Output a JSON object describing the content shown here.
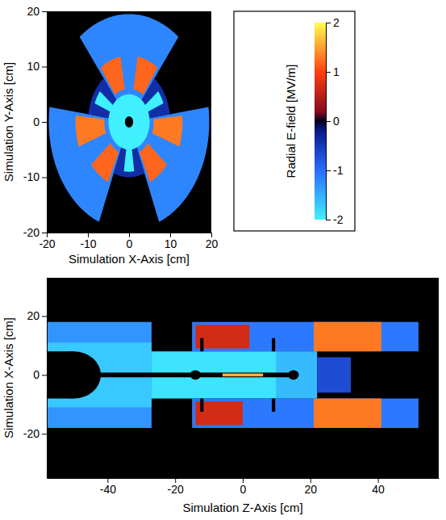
{
  "chart_data": [
    {
      "type": "heatmap",
      "xlabel": "Simulation X-Axis [cm]",
      "ylabel": "Simulation Y-Axis [cm]",
      "xlim": [
        -20,
        20
      ],
      "ylim": [
        -20,
        20
      ],
      "xticks": [
        -20,
        -10,
        0,
        10,
        20
      ],
      "yticks": [
        -20,
        -10,
        0,
        10,
        20
      ],
      "colorbar": {
        "label": "Radial E-field [MV/m]",
        "range": [
          -2,
          2
        ],
        "ticks": [
          -2,
          -1,
          0,
          1,
          2
        ]
      },
      "regions": [
        {
          "shape": "sector",
          "radius": [
            4,
            19.5
          ],
          "angle": [
            52,
            128
          ],
          "value": -1.2
        },
        {
          "shape": "sector",
          "radius": [
            4,
            19.5
          ],
          "angle": [
            172,
            248
          ],
          "value": -1.2
        },
        {
          "shape": "sector",
          "radius": [
            4,
            19.5
          ],
          "angle": [
            292,
            368
          ],
          "value": -1.2
        },
        {
          "shape": "sector",
          "radius": [
            6,
            12
          ],
          "angle": [
            55,
            80
          ],
          "value": 1.2
        },
        {
          "shape": "sector",
          "radius": [
            6,
            12
          ],
          "angle": [
            100,
            125
          ],
          "value": 1.2
        },
        {
          "shape": "sector",
          "radius": [
            6,
            13
          ],
          "angle": [
            175,
            200
          ],
          "value": 1.3
        },
        {
          "shape": "sector",
          "radius": [
            6,
            12
          ],
          "angle": [
            220,
            245
          ],
          "value": 1.2
        },
        {
          "shape": "sector",
          "radius": [
            6,
            12
          ],
          "angle": [
            295,
            320
          ],
          "value": 1.2
        },
        {
          "shape": "sector",
          "radius": [
            6,
            13
          ],
          "angle": [
            340,
            365
          ],
          "value": 1.3
        },
        {
          "shape": "sector",
          "radius": [
            4,
            10
          ],
          "angle": [
            128,
            172
          ],
          "value": -0.4
        },
        {
          "shape": "sector",
          "radius": [
            4,
            10
          ],
          "angle": [
            248,
            292
          ],
          "value": -0.4
        },
        {
          "shape": "sector",
          "radius": [
            4,
            10
          ],
          "angle": [
            8,
            52
          ],
          "value": -0.4
        },
        {
          "shape": "sector",
          "radius": [
            0,
            5
          ],
          "angle": [
            0,
            360
          ],
          "value": -2
        },
        {
          "shape": "sector",
          "radius": [
            4,
            9
          ],
          "angle": [
            142,
            158
          ],
          "value": -2
        },
        {
          "shape": "sector",
          "radius": [
            4,
            9
          ],
          "angle": [
            262,
            278
          ],
          "value": -2
        },
        {
          "shape": "sector",
          "radius": [
            4,
            9
          ],
          "angle": [
            22,
            38
          ],
          "value": -2
        },
        {
          "shape": "sector",
          "radius": [
            0,
            1
          ],
          "angle": [
            0,
            360
          ],
          "value": null
        }
      ]
    },
    {
      "type": "heatmap",
      "xlabel": "Simulation Z-Axis [cm]",
      "ylabel": "Simulation X-Axis [cm]",
      "xlim": [
        -58,
        58
      ],
      "ylim": [
        -35,
        33
      ],
      "xticks": [
        -40,
        -20,
        0,
        20,
        40
      ],
      "yticks": [
        -20,
        0,
        20
      ],
      "regions": [
        {
          "shape": "rect",
          "z": [
            -58,
            -27
          ],
          "x": [
            -18,
            18
          ],
          "value": -1.3
        },
        {
          "shape": "rect",
          "z": [
            -58,
            -27
          ],
          "x": [
            -11,
            11
          ],
          "value": -1.7
        },
        {
          "shape": "rect",
          "z": [
            -27,
            10
          ],
          "x": [
            -8,
            8
          ],
          "value": -1.9
        },
        {
          "shape": "rect",
          "z": [
            -15,
            52
          ],
          "x": [
            8,
            18
          ],
          "value": -1.1
        },
        {
          "shape": "rect",
          "z": [
            -15,
            52
          ],
          "x": [
            -18,
            -8
          ],
          "value": -1.1
        },
        {
          "shape": "rect",
          "z": [
            -14,
            2
          ],
          "x": [
            9,
            17
          ],
          "value": 0.7
        },
        {
          "shape": "rect",
          "z": [
            -14,
            0
          ],
          "x": [
            -17,
            -9
          ],
          "value": 0.7
        },
        {
          "shape": "rect",
          "z": [
            21,
            41
          ],
          "x": [
            8,
            18
          ],
          "value": 1.3
        },
        {
          "shape": "rect",
          "z": [
            21,
            41
          ],
          "x": [
            -18,
            -8
          ],
          "value": 1.3
        },
        {
          "shape": "rect",
          "z": [
            10,
            22
          ],
          "x": [
            -8,
            8
          ],
          "value": -1.6
        },
        {
          "shape": "rect",
          "z": [
            22,
            32
          ],
          "x": [
            -6,
            6
          ],
          "value": -0.7
        },
        {
          "shape": "rect",
          "z": [
            -58,
            -50
          ],
          "x": [
            -8,
            8
          ],
          "value": null
        },
        {
          "shape": "disk",
          "center": [
            -50,
            0
          ],
          "radius": 8,
          "value": null
        },
        {
          "shape": "rect",
          "z": [
            -43,
            15
          ],
          "x": [
            -0.8,
            0.8
          ],
          "value": null
        },
        {
          "shape": "disk",
          "center": [
            -14,
            0
          ],
          "radius": 1.6,
          "value": null
        },
        {
          "shape": "disk",
          "center": [
            15,
            0
          ],
          "radius": 1.6,
          "value": null
        },
        {
          "shape": "rect",
          "z": [
            -12.6,
            -11.6
          ],
          "x": [
            8,
            12.5
          ],
          "value": null
        },
        {
          "shape": "rect",
          "z": [
            -12.6,
            -11.6
          ],
          "x": [
            -12.5,
            -8
          ],
          "value": null
        },
        {
          "shape": "rect",
          "z": [
            8.6,
            9.6
          ],
          "x": [
            8,
            12.5
          ],
          "value": null
        },
        {
          "shape": "rect",
          "z": [
            8.6,
            9.6
          ],
          "x": [
            -12.5,
            -8
          ],
          "value": null
        },
        {
          "shape": "rect",
          "z": [
            -6,
            6
          ],
          "x": [
            -0.5,
            0.5
          ],
          "value": 1.6
        }
      ]
    }
  ]
}
